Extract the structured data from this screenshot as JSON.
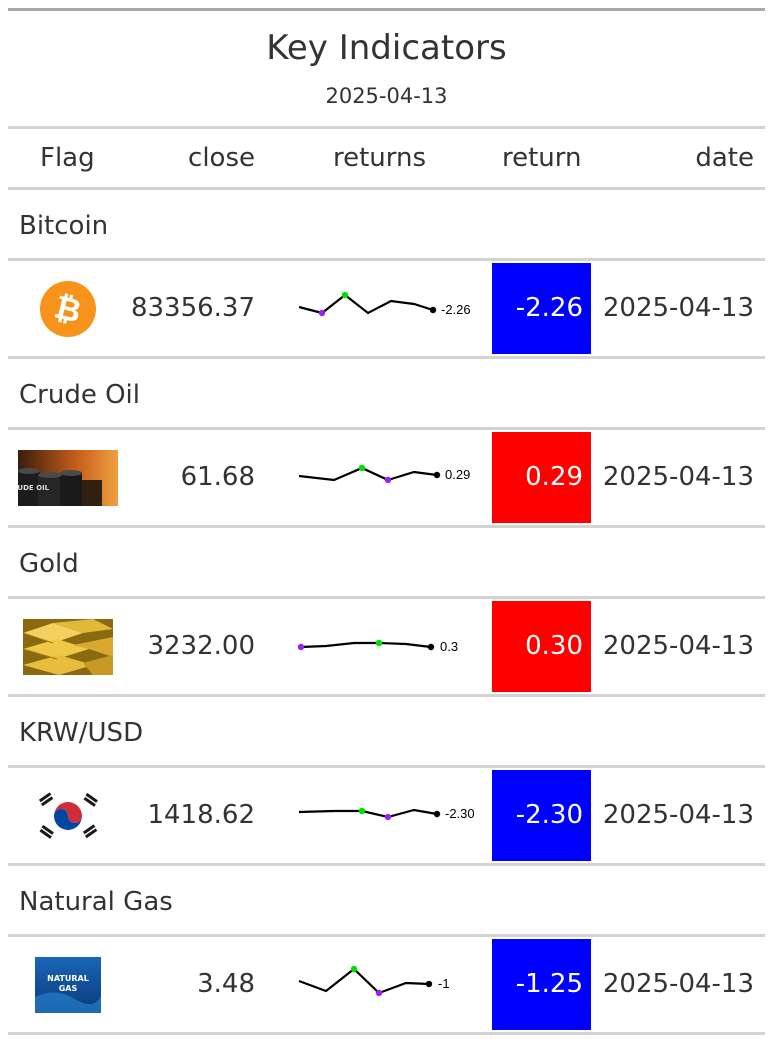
{
  "title": "Key Indicators",
  "subtitle": "2025-04-13",
  "columns": {
    "flag": "Flag",
    "close": "close",
    "returns": "returns",
    "return": "return",
    "date": "date"
  },
  "colors": {
    "negative": "#0000ff",
    "positive": "#ff0000",
    "min_point": "#a020f0",
    "max_point": "#00e000",
    "line": "#000000"
  },
  "rows": [
    {
      "group": "Bitcoin",
      "flag_icon": "bitcoin-icon",
      "close": "83356.37",
      "spark_label": "-2.26",
      "return": "-2.26",
      "sign": "negative",
      "date": "2025-04-13"
    },
    {
      "group": "Crude Oil",
      "flag_icon": "crude-oil-image",
      "flag_text": "CRUDE OIL",
      "close": "61.68",
      "spark_label": "0.29",
      "return": "0.29",
      "sign": "positive",
      "date": "2025-04-13"
    },
    {
      "group": "Gold",
      "flag_icon": "gold-bars-image",
      "close": "3232.00",
      "spark_label": "0.3",
      "return": "0.30",
      "sign": "positive",
      "date": "2025-04-13"
    },
    {
      "group": "KRW/USD",
      "flag_icon": "south-korea-flag-icon",
      "close": "1418.62",
      "spark_label": "-2.30",
      "return": "-2.30",
      "sign": "negative",
      "date": "2025-04-13"
    },
    {
      "group": "Natural Gas",
      "flag_icon": "natural-gas-image",
      "flag_text_1": "NATURAL",
      "flag_text_2": "GAS",
      "close": "3.48",
      "spark_label": "-1",
      "return": "-1.25",
      "sign": "negative",
      "date": "2025-04-13"
    }
  ]
}
